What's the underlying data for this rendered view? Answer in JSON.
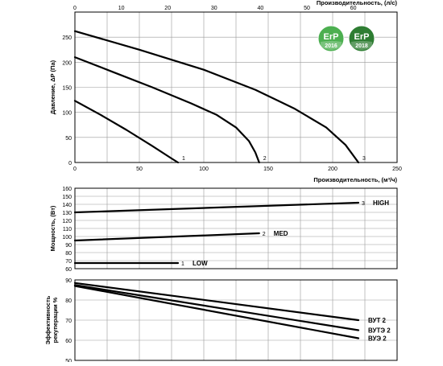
{
  "chart_data": [
    {
      "type": "line",
      "xlabel_top": "Производительность, (л/с)",
      "xlabel_bottom": "Производительность, (м³/ч)",
      "ylabel": "Давление, ΔP (Па)",
      "x_ticks_bottom": [
        "0",
        "50",
        "100",
        "150",
        "200",
        "250"
      ],
      "x_ticks_top": [
        "0",
        "10",
        "20",
        "30",
        "40",
        "50",
        "60"
      ],
      "y_ticks": [
        "0",
        "50",
        "100",
        "150",
        "200",
        "250"
      ],
      "xlim": [
        0,
        250
      ],
      "xlim_top": [
        0,
        69.44
      ],
      "ylim": [
        0,
        300
      ],
      "grid": true,
      "series": [
        {
          "name": "1",
          "x": [
            0,
            20,
            40,
            60,
            75,
            80
          ],
          "y": [
            123,
            95,
            65,
            33,
            8,
            0
          ]
        },
        {
          "name": "2",
          "x": [
            0,
            30,
            60,
            90,
            110,
            125,
            135,
            140,
            143
          ],
          "y": [
            210,
            180,
            150,
            118,
            95,
            70,
            43,
            20,
            0
          ]
        },
        {
          "name": "3",
          "x": [
            0,
            50,
            100,
            140,
            170,
            195,
            210,
            220
          ],
          "y": [
            262,
            225,
            185,
            145,
            108,
            70,
            35,
            0
          ]
        }
      ],
      "badges": [
        {
          "text": "ErP",
          "year": "2016",
          "color": "#4caf50"
        },
        {
          "text": "ErP",
          "year": "2018",
          "color": "#2e7d32"
        }
      ]
    },
    {
      "type": "line",
      "ylabel": "Мощность, (Вт)",
      "y_ticks": [
        "60",
        "70",
        "80",
        "90",
        "100",
        "110",
        "120",
        "130",
        "140",
        "150",
        "160"
      ],
      "xlim": [
        0,
        250
      ],
      "ylim": [
        60,
        160
      ],
      "grid": true,
      "series": [
        {
          "name": "1",
          "label": "LOW",
          "x": [
            0,
            80
          ],
          "y": [
            67,
            67
          ]
        },
        {
          "name": "2",
          "label": "MED",
          "x": [
            0,
            143
          ],
          "y": [
            95,
            104
          ]
        },
        {
          "name": "3",
          "label": "HIGH",
          "x": [
            0,
            220
          ],
          "y": [
            130,
            142
          ]
        }
      ]
    },
    {
      "type": "line",
      "ylabel": "Эффективность рекуперации %",
      "y_ticks": [
        "50",
        "60",
        "70",
        "80",
        "90"
      ],
      "xlim": [
        0,
        250
      ],
      "ylim": [
        50,
        90
      ],
      "grid": true,
      "series": [
        {
          "name": "ВУТ 2",
          "x": [
            0,
            220
          ],
          "y": [
            88.5,
            70
          ]
        },
        {
          "name": "ВУТЭ 2",
          "x": [
            0,
            220
          ],
          "y": [
            87.5,
            65
          ]
        },
        {
          "name": "ВУЭ 2",
          "x": [
            0,
            220
          ],
          "y": [
            87,
            61
          ]
        }
      ]
    }
  ]
}
